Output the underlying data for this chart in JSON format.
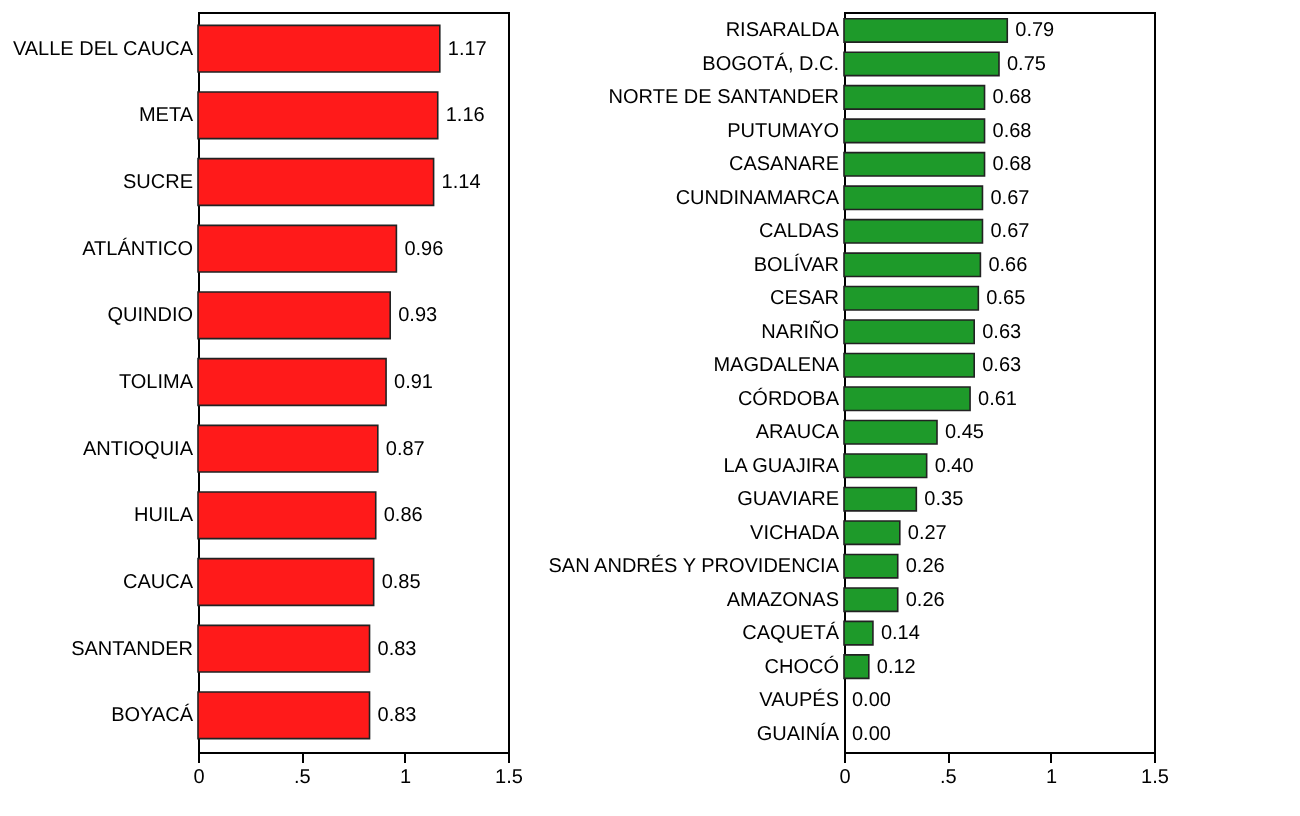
{
  "chart_data": [
    {
      "type": "bar",
      "orientation": "horizontal",
      "categories": [
        "VALLE DEL CAUCA",
        "META",
        "SUCRE",
        "ATLÁNTICO",
        "QUINDIO",
        "TOLIMA",
        "ANTIOQUIA",
        "HUILA",
        "CAUCA",
        "SANTANDER",
        "BOYACÁ"
      ],
      "values": [
        1.17,
        1.16,
        1.14,
        0.96,
        0.93,
        0.91,
        0.87,
        0.86,
        0.85,
        0.83,
        0.83
      ],
      "value_labels": [
        "1.17",
        "1.16",
        "1.14",
        "0.96",
        "0.93",
        "0.91",
        "0.87",
        "0.86",
        "0.85",
        "0.83",
        "0.83"
      ],
      "color": "#ff1a1a",
      "xlim": [
        0,
        1.5
      ],
      "xticks": [
        {
          "value": 0,
          "label": "0"
        },
        {
          "value": 0.5,
          "label": ".5"
        },
        {
          "value": 1,
          "label": "1"
        },
        1.5
      ],
      "grid": false
    },
    {
      "type": "bar",
      "orientation": "horizontal",
      "categories": [
        "RISARALDA",
        "BOGOTÁ, D.C.",
        "NORTE DE SANTANDER",
        "PUTUMAYO",
        "CASANARE",
        "CUNDINAMARCA",
        "CALDAS",
        "BOLÍVAR",
        "CESAR",
        "NARIÑO",
        "MAGDALENA",
        "CÓRDOBA",
        "ARAUCA",
        "LA GUAJIRA",
        "GUAVIARE",
        "VICHADA",
        "SAN ANDRÉS Y PROVIDENCIA",
        "AMAZONAS",
        "CAQUETÁ",
        "CHOCÓ",
        "VAUPÉS",
        "GUAINÍA"
      ],
      "values": [
        0.79,
        0.75,
        0.68,
        0.68,
        0.68,
        0.67,
        0.67,
        0.66,
        0.65,
        0.63,
        0.63,
        0.61,
        0.45,
        0.4,
        0.35,
        0.27,
        0.26,
        0.26,
        0.14,
        0.12,
        0.0,
        0.0
      ],
      "value_labels": [
        "0.79",
        "0.75",
        "0.68",
        "0.68",
        "0.68",
        "0.67",
        "0.67",
        "0.66",
        "0.65",
        "0.63",
        "0.63",
        "0.61",
        "0.45",
        "0.40",
        "0.35",
        "0.27",
        "0.26",
        "0.26",
        "0.14",
        "0.12",
        "0.00",
        "0.00"
      ],
      "color": "#1e9a2a",
      "xlim": [
        0,
        1.5
      ],
      "xticks": [
        {
          "value": 0,
          "label": "0"
        },
        {
          "value": 0.5,
          "label": ".5"
        },
        {
          "value": 1,
          "label": "1"
        },
        1.5
      ],
      "grid": false
    }
  ]
}
